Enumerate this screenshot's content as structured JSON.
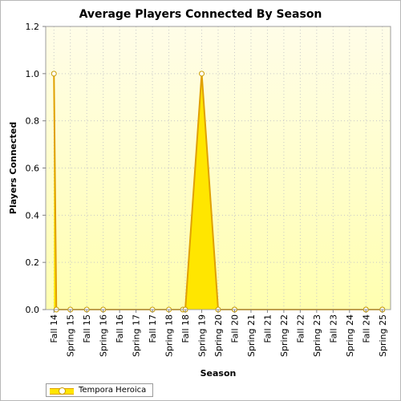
{
  "chart_data": {
    "type": "area",
    "title": "Average Players Connected By Season",
    "xlabel": "Season",
    "ylabel": "Players Connected",
    "ylim": [
      0,
      1.2
    ],
    "yticks": [
      "0.0",
      "0.2",
      "0.4",
      "0.6",
      "0.8",
      "1.0",
      "1.2"
    ],
    "grid": true,
    "legend_position": "bottom-left",
    "categories": [
      "Fall 14",
      "Spring 15",
      "Fall 15",
      "Spring 16",
      "Fall 16",
      "Spring 17",
      "Fall 17",
      "Spring 18",
      "Fall 18",
      "Spring 19",
      "Spring 20",
      "Fall 20",
      "Spring 21",
      "Fall 21",
      "Spring 22",
      "Fall 22",
      "Spring 23",
      "Fall 23",
      "Spring 24",
      "Fall 24",
      "Spring 25"
    ],
    "series": [
      {
        "name": "Tempora Heroica",
        "color": "#ffe600",
        "line_color": "#e0a000",
        "points": [
          {
            "category": "Fall 14",
            "value": 1.0
          },
          {
            "category": "Fall 14",
            "value": 0.0
          },
          {
            "category": "Spring 15",
            "value": 0.0
          },
          {
            "category": "Fall 15",
            "value": 0.0
          },
          {
            "category": "Spring 16",
            "value": 0.0
          },
          {
            "category": "Fall 17",
            "value": 0.0
          },
          {
            "category": "Spring 18",
            "value": 0.0
          },
          {
            "category": "Fall 18",
            "value": 0.0
          },
          {
            "category": "Fall 18",
            "value": 0.0
          },
          {
            "category": "Spring 19",
            "value": 1.0
          },
          {
            "category": "Spring 20",
            "value": 0.0
          },
          {
            "category": "Fall 20",
            "value": 0.0
          },
          {
            "category": "Fall 20",
            "value": 0.0
          },
          {
            "category": "Fall 24",
            "value": 0.0
          },
          {
            "category": "Fall 24",
            "value": 0.0
          },
          {
            "category": "Spring 25",
            "value": 0.0
          },
          {
            "category": "Spring 25",
            "value": 0.0
          }
        ]
      }
    ]
  }
}
